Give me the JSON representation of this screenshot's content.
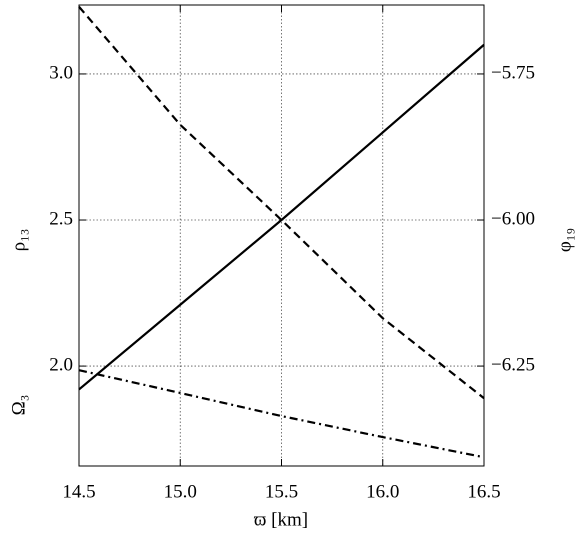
{
  "chart_data": {
    "type": "line",
    "xlabel": "ϖ [km]",
    "ylabels": [
      "ρ₁₃",
      "Ω₃"
    ],
    "y2label": "φ₁₉",
    "x": [
      14.5,
      15.0,
      15.5,
      16.0,
      16.5
    ],
    "series": [
      {
        "color": "#000000",
        "linestyle": "solid",
        "axis": "y",
        "values": [
          1.92,
          2.21,
          2.5,
          2.8,
          3.1
        ]
      },
      {
        "color": "#000000",
        "linestyle": "dashed",
        "axis": "y2",
        "values": [
          -5.635,
          -5.837,
          -6.0,
          -6.168,
          -6.305
        ]
      },
      {
        "color": "#000000",
        "linestyle": "dashdot",
        "axis": "y",
        "values": [
          1.986,
          1.908,
          1.829,
          1.757,
          1.688
        ]
      }
    ],
    "xlim": [
      14.5,
      16.5
    ],
    "xticks": [
      14.5,
      {
        "value": 15,
        "label": "15.0"
      },
      15.5,
      {
        "value": 16,
        "label": "16.0"
      },
      16.5
    ],
    "ylim": [
      1.658,
      3.236
    ],
    "yticks": [
      {
        "value": 2,
        "label": "2.0"
      },
      2.5,
      {
        "value": 3,
        "label": "3.0"
      }
    ],
    "y2lim": [
      -6.421,
      -5.632
    ],
    "y2ticks": [
      {
        "value": -6.25,
        "label": "−6.25"
      },
      {
        "value": -6,
        "label": "−6.00"
      },
      {
        "value": -5.75,
        "label": "−5.75"
      }
    ],
    "grid": true
  }
}
